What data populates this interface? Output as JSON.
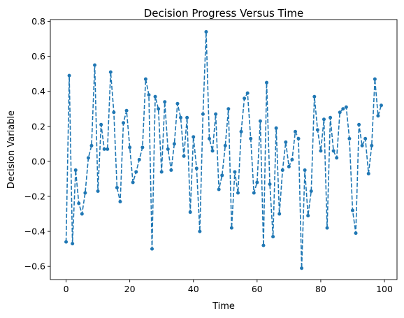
{
  "chart_data": {
    "type": "line",
    "title": "Decision Progress Versus Time",
    "xlabel": "Time",
    "ylabel": "Decision Variable",
    "xlim": [
      -4.95,
      103.95
    ],
    "ylim": [
      -0.675,
      0.81
    ],
    "x_ticks": [
      0,
      20,
      40,
      60,
      80,
      100
    ],
    "x_tick_labels": [
      "0",
      "20",
      "40",
      "60",
      "80",
      "100"
    ],
    "y_ticks": [
      -0.6,
      -0.4,
      -0.2,
      0.0,
      0.2,
      0.4,
      0.6,
      0.8
    ],
    "y_tick_labels": [
      "−0.6",
      "−0.4",
      "−0.2",
      "0.0",
      "0.2",
      "0.4",
      "0.6",
      "0.8"
    ],
    "grid": false,
    "line_style": "dashed",
    "marker": "circle",
    "colors": {
      "series": "#1f77b4"
    },
    "series": [
      {
        "x": [
          0,
          1,
          2,
          3,
          4,
          5,
          6,
          7,
          8,
          9,
          10,
          11,
          12,
          13,
          14,
          15,
          16,
          17,
          18,
          19,
          20,
          21,
          22,
          23,
          24,
          25,
          26,
          27,
          28,
          29,
          30,
          31,
          32,
          33,
          34,
          35,
          36,
          37,
          38,
          39,
          40,
          41,
          42,
          43,
          44,
          45,
          46,
          47,
          48,
          49,
          50,
          51,
          52,
          53,
          54,
          55,
          56,
          57,
          58,
          59,
          60,
          61,
          62,
          63,
          64,
          65,
          66,
          67,
          68,
          69,
          70,
          71,
          72,
          73,
          74,
          75,
          76,
          77,
          78,
          79,
          80,
          81,
          82,
          83,
          84,
          85,
          86,
          87,
          88,
          89,
          90,
          91,
          92,
          93,
          94,
          95,
          96,
          97,
          98,
          99
        ],
        "values": [
          -0.46,
          0.49,
          -0.47,
          -0.05,
          -0.24,
          -0.3,
          -0.18,
          0.02,
          0.09,
          0.55,
          -0.17,
          0.21,
          0.07,
          0.07,
          0.51,
          0.28,
          -0.15,
          -0.23,
          0.22,
          0.29,
          0.08,
          -0.12,
          -0.06,
          0.01,
          0.08,
          0.47,
          0.38,
          -0.5,
          0.37,
          0.3,
          -0.06,
          0.34,
          0.07,
          -0.05,
          0.1,
          0.33,
          0.25,
          0.03,
          0.25,
          -0.29,
          0.14,
          -0.04,
          -0.4,
          0.27,
          0.74,
          0.13,
          0.06,
          0.27,
          -0.16,
          -0.08,
          0.09,
          0.3,
          -0.38,
          -0.06,
          -0.18,
          0.17,
          0.36,
          0.39,
          0.13,
          -0.18,
          -0.12,
          0.23,
          -0.48,
          0.45,
          -0.13,
          -0.43,
          0.19,
          -0.3,
          -0.05,
          0.11,
          -0.03,
          0.01,
          0.17,
          0.13,
          -0.61,
          -0.05,
          -0.31,
          -0.17,
          0.37,
          0.18,
          0.06,
          0.24,
          -0.38,
          0.25,
          0.06,
          0.02,
          0.28,
          0.3,
          0.31,
          0.13,
          -0.28,
          -0.41,
          0.21,
          0.09,
          0.13,
          -0.07,
          0.09,
          0.47,
          0.26,
          0.32
        ]
      }
    ]
  }
}
